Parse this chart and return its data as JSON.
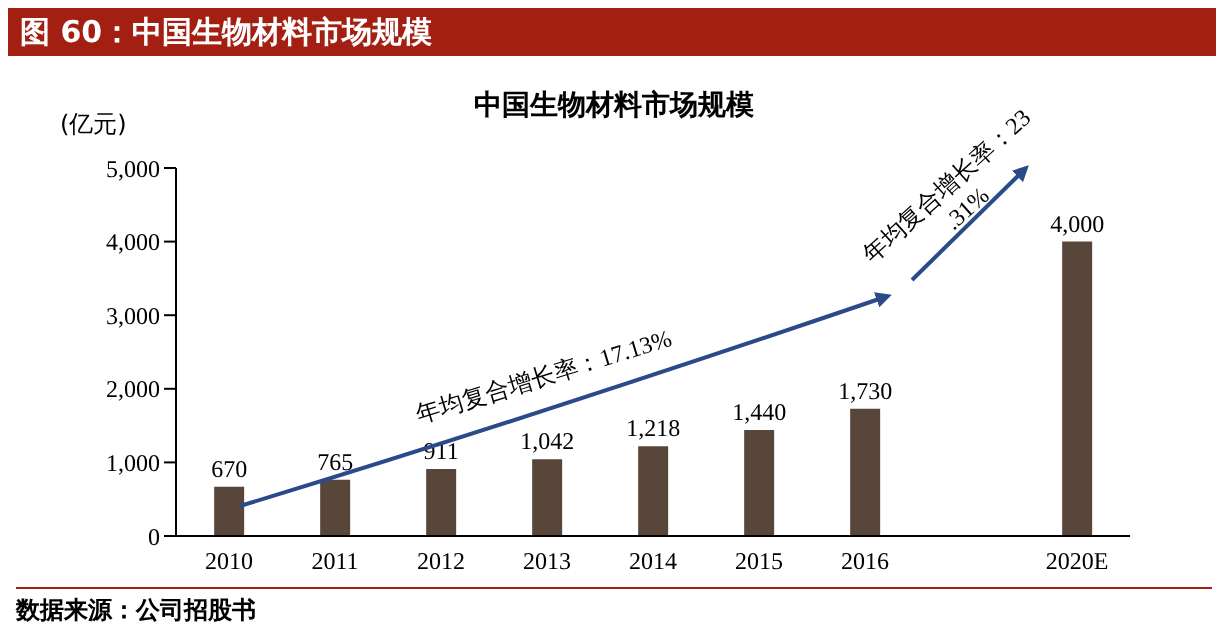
{
  "chart_data": {
    "type": "bar",
    "title": "图 60：中国生物材料市场规模",
    "subtitle": "中国生物材料市场规模",
    "ylabel": "(亿元)",
    "categories": [
      "2010",
      "2011",
      "2012",
      "2013",
      "2014",
      "2015",
      "2016",
      null,
      "2020E"
    ],
    "values": [
      670,
      765,
      911,
      1042,
      1218,
      1440,
      1730,
      null,
      4000
    ],
    "value_labels": [
      "670",
      "765",
      "911",
      "1,042",
      "1,218",
      "1,440",
      "1,730",
      null,
      "4,000"
    ],
    "color": "#59463a",
    "ylim": [
      0,
      5000
    ],
    "yticks": [
      {
        "value": 0,
        "label": "0"
      },
      {
        "value": 1000,
        "label": "1,000"
      },
      {
        "value": 2000,
        "label": "2,000"
      },
      {
        "value": 3000,
        "label": "3,000"
      },
      {
        "value": 4000,
        "label": "4,000"
      },
      {
        "value": 5000,
        "label": "5,000"
      }
    ],
    "annotations": [
      "年均复合增长率：17.13%",
      "年均复合增长率：23.31%",
      "数据来源：公司招股书"
    ]
  }
}
